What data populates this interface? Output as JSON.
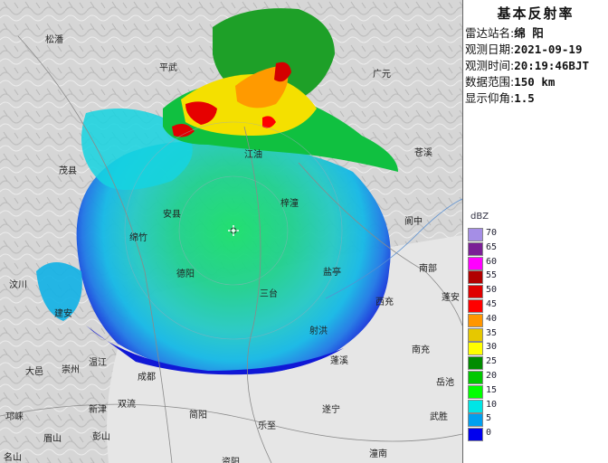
{
  "panel": {
    "title": "基本反射率",
    "rows": [
      {
        "label": "雷达站名:",
        "value": "绵 阳"
      },
      {
        "label": "观测日期:",
        "value": "2021-09-19"
      },
      {
        "label": "观测时间:",
        "value": "20:19:46BJT"
      },
      {
        "label": "数据范围:",
        "value": "150 km"
      },
      {
        "label": "显示仰角:",
        "value": "1.5"
      }
    ]
  },
  "legend": {
    "unit": "dBZ",
    "levels": [
      {
        "label": "70",
        "color": "#a58ee6"
      },
      {
        "label": "65",
        "color": "#7a1f95"
      },
      {
        "label": "60",
        "color": "#ff00ff"
      },
      {
        "label": "55",
        "color": "#b10000"
      },
      {
        "label": "50",
        "color": "#e00000"
      },
      {
        "label": "45",
        "color": "#ff0000"
      },
      {
        "label": "40",
        "color": "#ff9600"
      },
      {
        "label": "35",
        "color": "#e6c800"
      },
      {
        "label": "30",
        "color": "#ffff00"
      },
      {
        "label": "25",
        "color": "#008c00"
      },
      {
        "label": "20",
        "color": "#00c800"
      },
      {
        "label": "15",
        "color": "#00ff00"
      },
      {
        "label": "10",
        "color": "#00e6e6"
      },
      {
        "label": "5",
        "color": "#00a0f0"
      },
      {
        "label": "0",
        "color": "#0000ee"
      }
    ]
  },
  "cities": [
    {
      "name": "松潘",
      "id": "songpan"
    },
    {
      "name": "平武",
      "id": "pingwu"
    },
    {
      "name": "广元",
      "id": "guangyuan"
    },
    {
      "name": "苍溪",
      "id": "cangxi"
    },
    {
      "name": "茂县",
      "id": "maoxian"
    },
    {
      "name": "江油",
      "id": "jiangyou"
    },
    {
      "name": "安县",
      "id": "anxian"
    },
    {
      "name": "梓潼",
      "id": "zitong"
    },
    {
      "name": "阆中",
      "id": "langzhong"
    },
    {
      "name": "绵竹",
      "id": "mianzhu"
    },
    {
      "name": "南部",
      "id": "nanbu"
    },
    {
      "name": "汶川",
      "id": "wenchuan"
    },
    {
      "name": "德阳",
      "id": "deyang"
    },
    {
      "name": "三台",
      "id": "santai"
    },
    {
      "name": "盐亭",
      "id": "yanting"
    },
    {
      "name": "蓬安",
      "id": "pengan"
    },
    {
      "name": "西充",
      "id": "xichong"
    },
    {
      "name": "建安",
      "id": "jianan"
    },
    {
      "name": "南充",
      "id": "nanchong"
    },
    {
      "name": "大邑",
      "id": "dayi"
    },
    {
      "name": "崇州",
      "id": "chongzhou"
    },
    {
      "name": "温江",
      "id": "wenjiang"
    },
    {
      "name": "成都",
      "id": "chengdu"
    },
    {
      "name": "射洪",
      "id": "shehong"
    },
    {
      "name": "蓬溪",
      "id": "pengxi"
    },
    {
      "name": "岳池",
      "id": "yuechi"
    },
    {
      "name": "新津",
      "id": "xinjin"
    },
    {
      "name": "双流",
      "id": "shuangliu"
    },
    {
      "name": "简阳",
      "id": "jianyang"
    },
    {
      "name": "遂宁",
      "id": "suining"
    },
    {
      "name": "武胜",
      "id": "wusheng"
    },
    {
      "name": "邛崃",
      "id": "qionglai"
    },
    {
      "name": "乐至",
      "id": "lezhi"
    },
    {
      "name": "眉山",
      "id": "meishan"
    },
    {
      "name": "彭山",
      "id": "pengshan"
    },
    {
      "name": "潼南",
      "id": "tongnan"
    },
    {
      "name": "资阳",
      "id": "ziyang"
    },
    {
      "name": "名山",
      "id": "mingshan"
    }
  ]
}
